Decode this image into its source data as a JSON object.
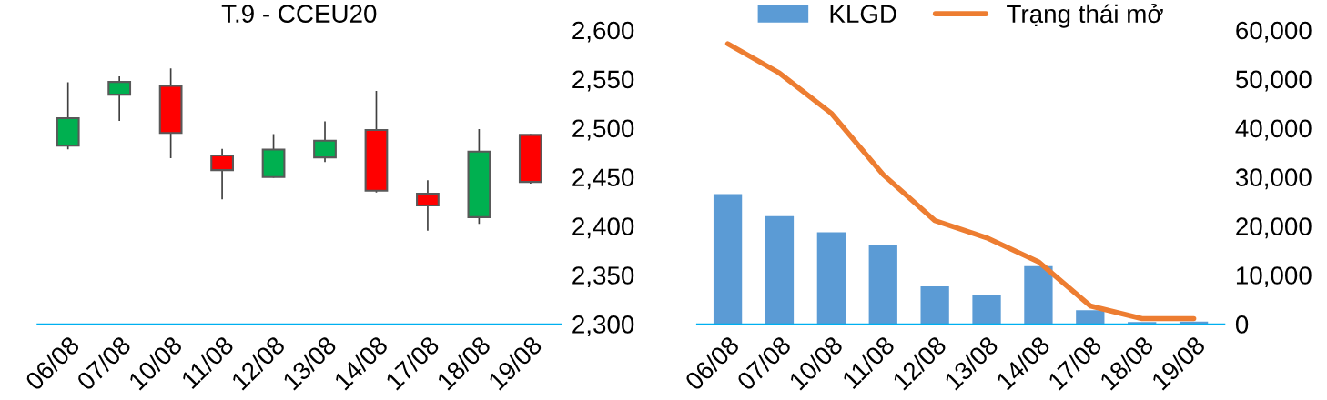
{
  "chart_data": [
    {
      "type": "candlestick",
      "title": "T.9 - CCEU20",
      "categories": [
        "06/08",
        "07/08",
        "10/08",
        "11/08",
        "12/08",
        "13/08",
        "14/08",
        "17/08",
        "18/08",
        "19/08"
      ],
      "ohlc": [
        [
          2482,
          2546,
          2479,
          2510
        ],
        [
          2534,
          2552,
          2508,
          2547
        ],
        [
          2543,
          2560,
          2470,
          2495
        ],
        [
          2472,
          2478,
          2428,
          2457
        ],
        [
          2450,
          2493,
          2450,
          2478
        ],
        [
          2470,
          2506,
          2466,
          2487
        ],
        [
          2498,
          2537,
          2435,
          2436
        ],
        [
          2433,
          2446,
          2396,
          2421
        ],
        [
          2409,
          2498,
          2403,
          2476
        ],
        [
          2493,
          2493,
          2444,
          2445
        ]
      ],
      "colors": [
        "#00b050",
        "#00b050",
        "#ff0000",
        "#ff0000",
        "#00b050",
        "#00b050",
        "#ff0000",
        "#ff0000",
        "#00b050",
        "#ff0000"
      ],
      "ylim": [
        2300,
        2600
      ],
      "yticks": [
        {
          "value": 2300,
          "label": "2,300"
        },
        {
          "value": 2350,
          "label": "2,350"
        },
        {
          "value": 2400,
          "label": "2,400"
        },
        {
          "value": 2450,
          "label": "2,450"
        },
        {
          "value": 2500,
          "label": "2,500"
        },
        {
          "value": 2550,
          "label": "2,550"
        },
        {
          "value": 2600,
          "label": "2,600"
        }
      ],
      "grid": false
    },
    {
      "type": "bar",
      "categories": [
        "06/08",
        "07/08",
        "10/08",
        "11/08",
        "12/08",
        "13/08",
        "14/08",
        "17/08",
        "18/08",
        "19/08"
      ],
      "series": [
        {
          "name": "KLGD",
          "type": "bar",
          "color": "#5b9bd5",
          "values": [
            26500,
            22000,
            18700,
            16100,
            7700,
            6000,
            11800,
            2800,
            400,
            500
          ]
        },
        {
          "name": "Trạng thái mở",
          "type": "line",
          "color": "#ed7d31",
          "values": [
            57200,
            51200,
            43000,
            30500,
            21100,
            17600,
            12700,
            3700,
            1100,
            1100
          ]
        }
      ],
      "ylim": [
        0,
        60000
      ],
      "yticks": [
        {
          "value": 0,
          "label": "0"
        },
        {
          "value": 10000,
          "label": "10,000"
        },
        {
          "value": 20000,
          "label": "20,000"
        },
        {
          "value": 30000,
          "label": "30,000"
        },
        {
          "value": 40000,
          "label": "40,000"
        },
        {
          "value": 50000,
          "label": "50,000"
        },
        {
          "value": 60000,
          "label": "60,000"
        }
      ],
      "grid": false,
      "legend": "top"
    }
  ]
}
